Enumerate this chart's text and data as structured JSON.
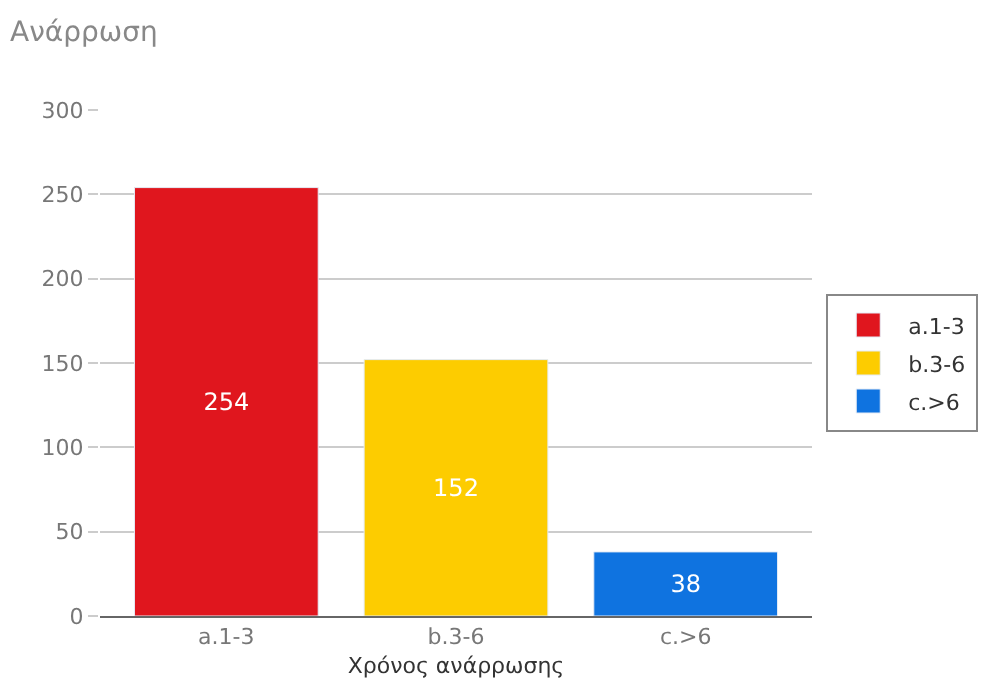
{
  "chart_data": {
    "type": "bar",
    "title": "Ανάρρωση",
    "xlabel": "Χρόνος ανάρρωσης",
    "categories": [
      "a.1-3",
      "b.3-6",
      "c.>6"
    ],
    "series": [
      {
        "name": "a.1-3",
        "color": "#e0161e",
        "values": [
          254,
          null,
          null
        ]
      },
      {
        "name": "b.3-6",
        "color": "#fdcc00",
        "values": [
          null,
          152,
          null
        ]
      },
      {
        "name": "c.>6",
        "color": "#0f73e0",
        "values": [
          null,
          null,
          38
        ]
      }
    ],
    "ylim": [
      0,
      300
    ],
    "yticks": [
      0,
      50,
      100,
      150,
      200,
      250,
      300
    ],
    "grid": "y",
    "legend": "right",
    "data_labels": true
  }
}
